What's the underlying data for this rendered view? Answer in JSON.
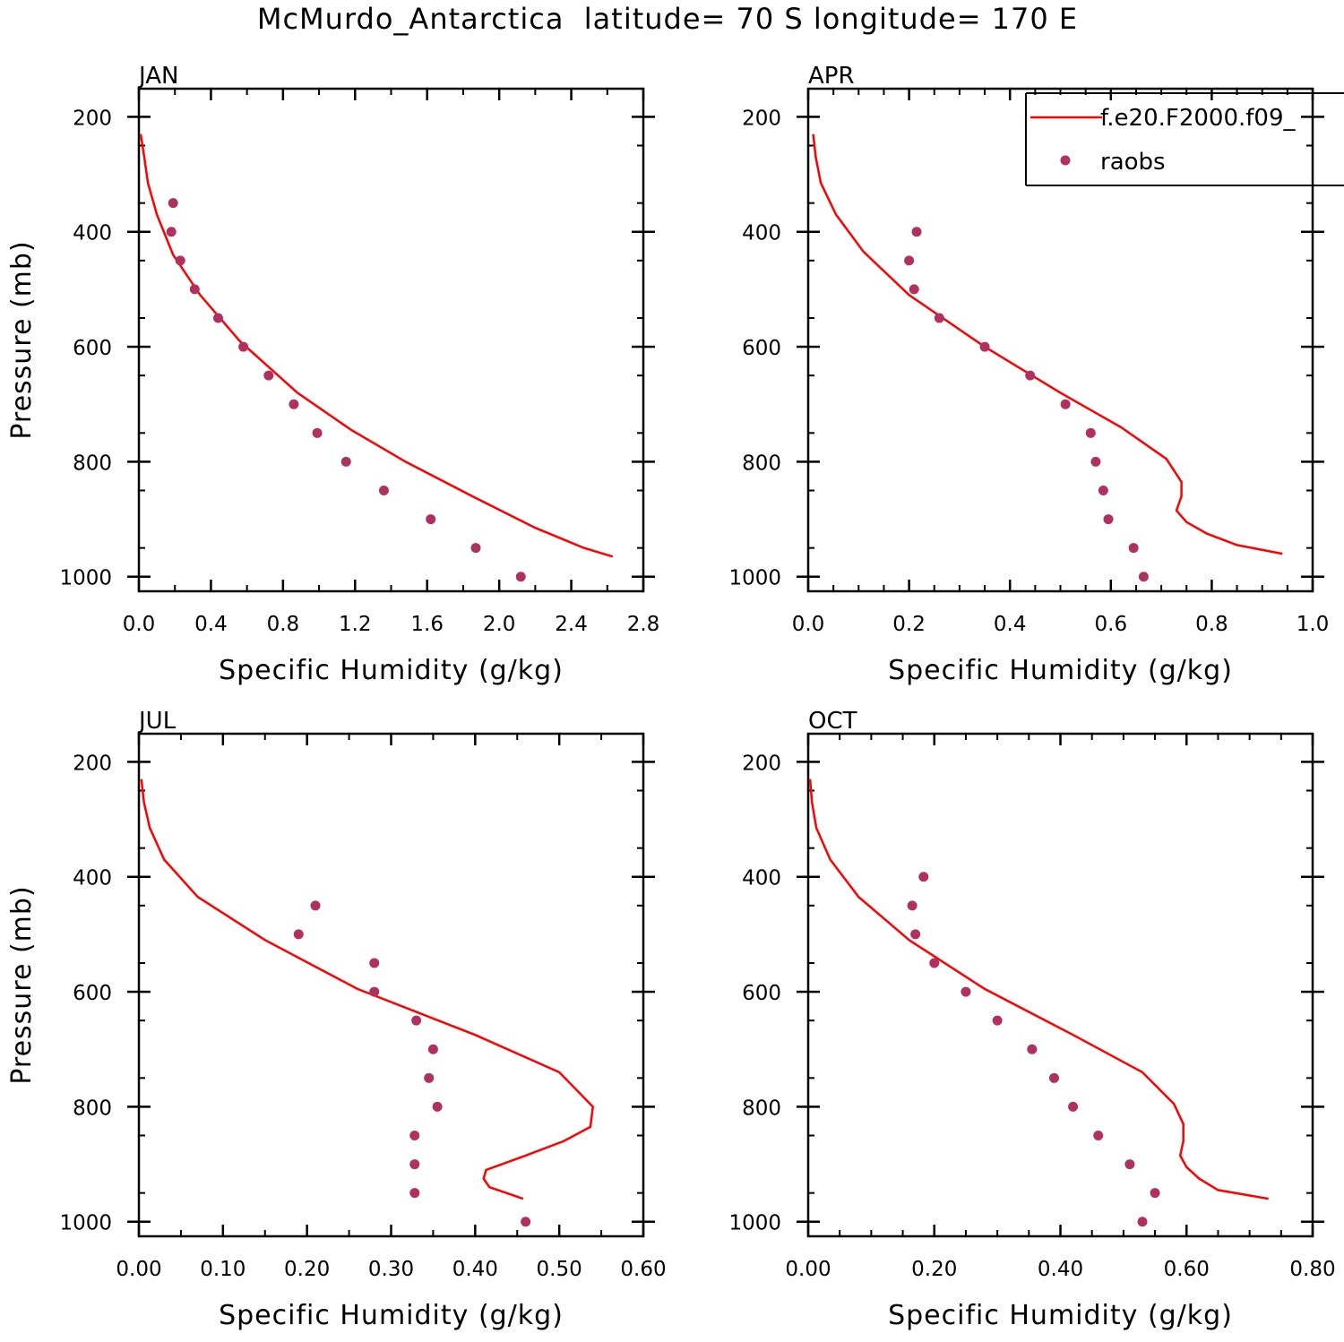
{
  "title": "McMurdo_Antarctica  latitude= 70 S longitude= 170 E",
  "legend": {
    "model_label": "f.e20.F2000.f09_",
    "obs_label": "raobs",
    "placement": "top-right"
  },
  "colors": {
    "model": "#ff0000",
    "obs": "#b03060",
    "axes": "#000000"
  },
  "chart_data": [
    {
      "type": "line",
      "title": "JAN",
      "xlabel": "Specific Humidity (g/kg)",
      "ylabel": "Pressure (mb)",
      "xlim": [
        0,
        2.8
      ],
      "ylim": [
        200,
        1000
      ],
      "y_inverted": true,
      "x_ticks": [
        "0.0",
        "0.4",
        "0.8",
        "1.2",
        "1.6",
        "2.0",
        "2.4",
        "2.8"
      ],
      "y_ticks": [
        "200",
        "400",
        "600",
        "800",
        "1000"
      ],
      "series": [
        {
          "name": "f.e20.F2000.f09_",
          "kind": "line",
          "x": [
            0.01,
            0.03,
            0.05,
            0.1,
            0.19,
            0.34,
            0.56,
            0.88,
            1.18,
            1.48,
            1.85,
            2.2,
            2.47,
            2.63
          ],
          "y": [
            230,
            270,
            315,
            370,
            440,
            510,
            590,
            680,
            745,
            800,
            860,
            915,
            950,
            965
          ]
        },
        {
          "name": "raobs",
          "kind": "scatter",
          "x": [
            0.19,
            0.18,
            0.23,
            0.31,
            0.44,
            0.58,
            0.72,
            0.86,
            0.99,
            1.15,
            1.36,
            1.62,
            1.87,
            2.12
          ],
          "y": [
            350,
            400,
            450,
            500,
            550,
            600,
            650,
            700,
            750,
            800,
            850,
            900,
            950,
            1000
          ]
        }
      ]
    },
    {
      "type": "line",
      "title": "APR",
      "xlabel": "Specific Humidity (g/kg)",
      "ylabel": "",
      "xlim": [
        0,
        1.0
      ],
      "ylim": [
        200,
        1000
      ],
      "y_inverted": true,
      "x_ticks": [
        "0.0",
        "0.2",
        "0.4",
        "0.6",
        "0.8",
        "1.0"
      ],
      "y_ticks": [
        "200",
        "400",
        "600",
        "800",
        "1000"
      ],
      "series": [
        {
          "name": "f.e20.F2000.f09_",
          "kind": "line",
          "x": [
            0.01,
            0.015,
            0.025,
            0.055,
            0.11,
            0.2,
            0.35,
            0.5,
            0.62,
            0.71,
            0.74,
            0.74,
            0.73,
            0.75,
            0.79,
            0.85,
            0.94
          ],
          "y": [
            230,
            270,
            315,
            370,
            435,
            510,
            600,
            680,
            740,
            795,
            835,
            860,
            885,
            905,
            925,
            945,
            960
          ]
        },
        {
          "name": "raobs",
          "kind": "scatter",
          "x": [
            0.215,
            0.2,
            0.21,
            0.26,
            0.35,
            0.44,
            0.51,
            0.56,
            0.57,
            0.585,
            0.595,
            0.645,
            0.665
          ],
          "y": [
            400,
            450,
            500,
            550,
            600,
            650,
            700,
            750,
            800,
            850,
            900,
            950,
            1000
          ]
        }
      ]
    },
    {
      "type": "line",
      "title": "JUL",
      "xlabel": "Specific Humidity (g/kg)",
      "ylabel": "Pressure (mb)",
      "xlim": [
        0,
        0.6
      ],
      "ylim": [
        200,
        1000
      ],
      "y_inverted": true,
      "x_ticks": [
        "0.00",
        "0.10",
        "0.20",
        "0.30",
        "0.40",
        "0.50",
        "0.60"
      ],
      "y_ticks": [
        "200",
        "400",
        "600",
        "800",
        "1000"
      ],
      "series": [
        {
          "name": "f.e20.F2000.f09_",
          "kind": "line",
          "x": [
            0.003,
            0.006,
            0.013,
            0.03,
            0.07,
            0.15,
            0.26,
            0.4,
            0.5,
            0.54,
            0.537,
            0.505,
            0.46,
            0.413,
            0.41,
            0.417,
            0.457
          ],
          "y": [
            230,
            270,
            315,
            370,
            435,
            510,
            595,
            675,
            740,
            800,
            835,
            860,
            885,
            910,
            925,
            940,
            960
          ]
        },
        {
          "name": "raobs",
          "kind": "scatter",
          "x": [
            0.21,
            0.19,
            0.28,
            0.28,
            0.33,
            0.35,
            0.345,
            0.355,
            0.328,
            0.328,
            0.328,
            0.46
          ],
          "y": [
            450,
            500,
            550,
            600,
            650,
            700,
            750,
            800,
            850,
            900,
            950,
            1000
          ]
        }
      ]
    },
    {
      "type": "line",
      "title": "OCT",
      "xlabel": "Specific Humidity (g/kg)",
      "ylabel": "",
      "xlim": [
        0,
        0.8
      ],
      "ylim": [
        200,
        1000
      ],
      "y_inverted": true,
      "x_ticks": [
        "0.00",
        "0.20",
        "0.40",
        "0.60",
        "0.80"
      ],
      "y_ticks": [
        "200",
        "400",
        "600",
        "800",
        "1000"
      ],
      "series": [
        {
          "name": "f.e20.F2000.f09_",
          "kind": "line",
          "x": [
            0.003,
            0.006,
            0.013,
            0.035,
            0.08,
            0.16,
            0.28,
            0.42,
            0.53,
            0.58,
            0.595,
            0.595,
            0.59,
            0.6,
            0.62,
            0.65,
            0.73
          ],
          "y": [
            230,
            270,
            315,
            370,
            435,
            510,
            595,
            675,
            740,
            795,
            830,
            860,
            885,
            905,
            925,
            945,
            960
          ]
        },
        {
          "name": "raobs",
          "kind": "scatter",
          "x": [
            0.183,
            0.165,
            0.17,
            0.2,
            0.25,
            0.3,
            0.355,
            0.39,
            0.42,
            0.46,
            0.51,
            0.55,
            0.53
          ],
          "y": [
            400,
            450,
            500,
            550,
            600,
            650,
            700,
            750,
            800,
            850,
            900,
            950,
            1000
          ]
        }
      ]
    }
  ]
}
